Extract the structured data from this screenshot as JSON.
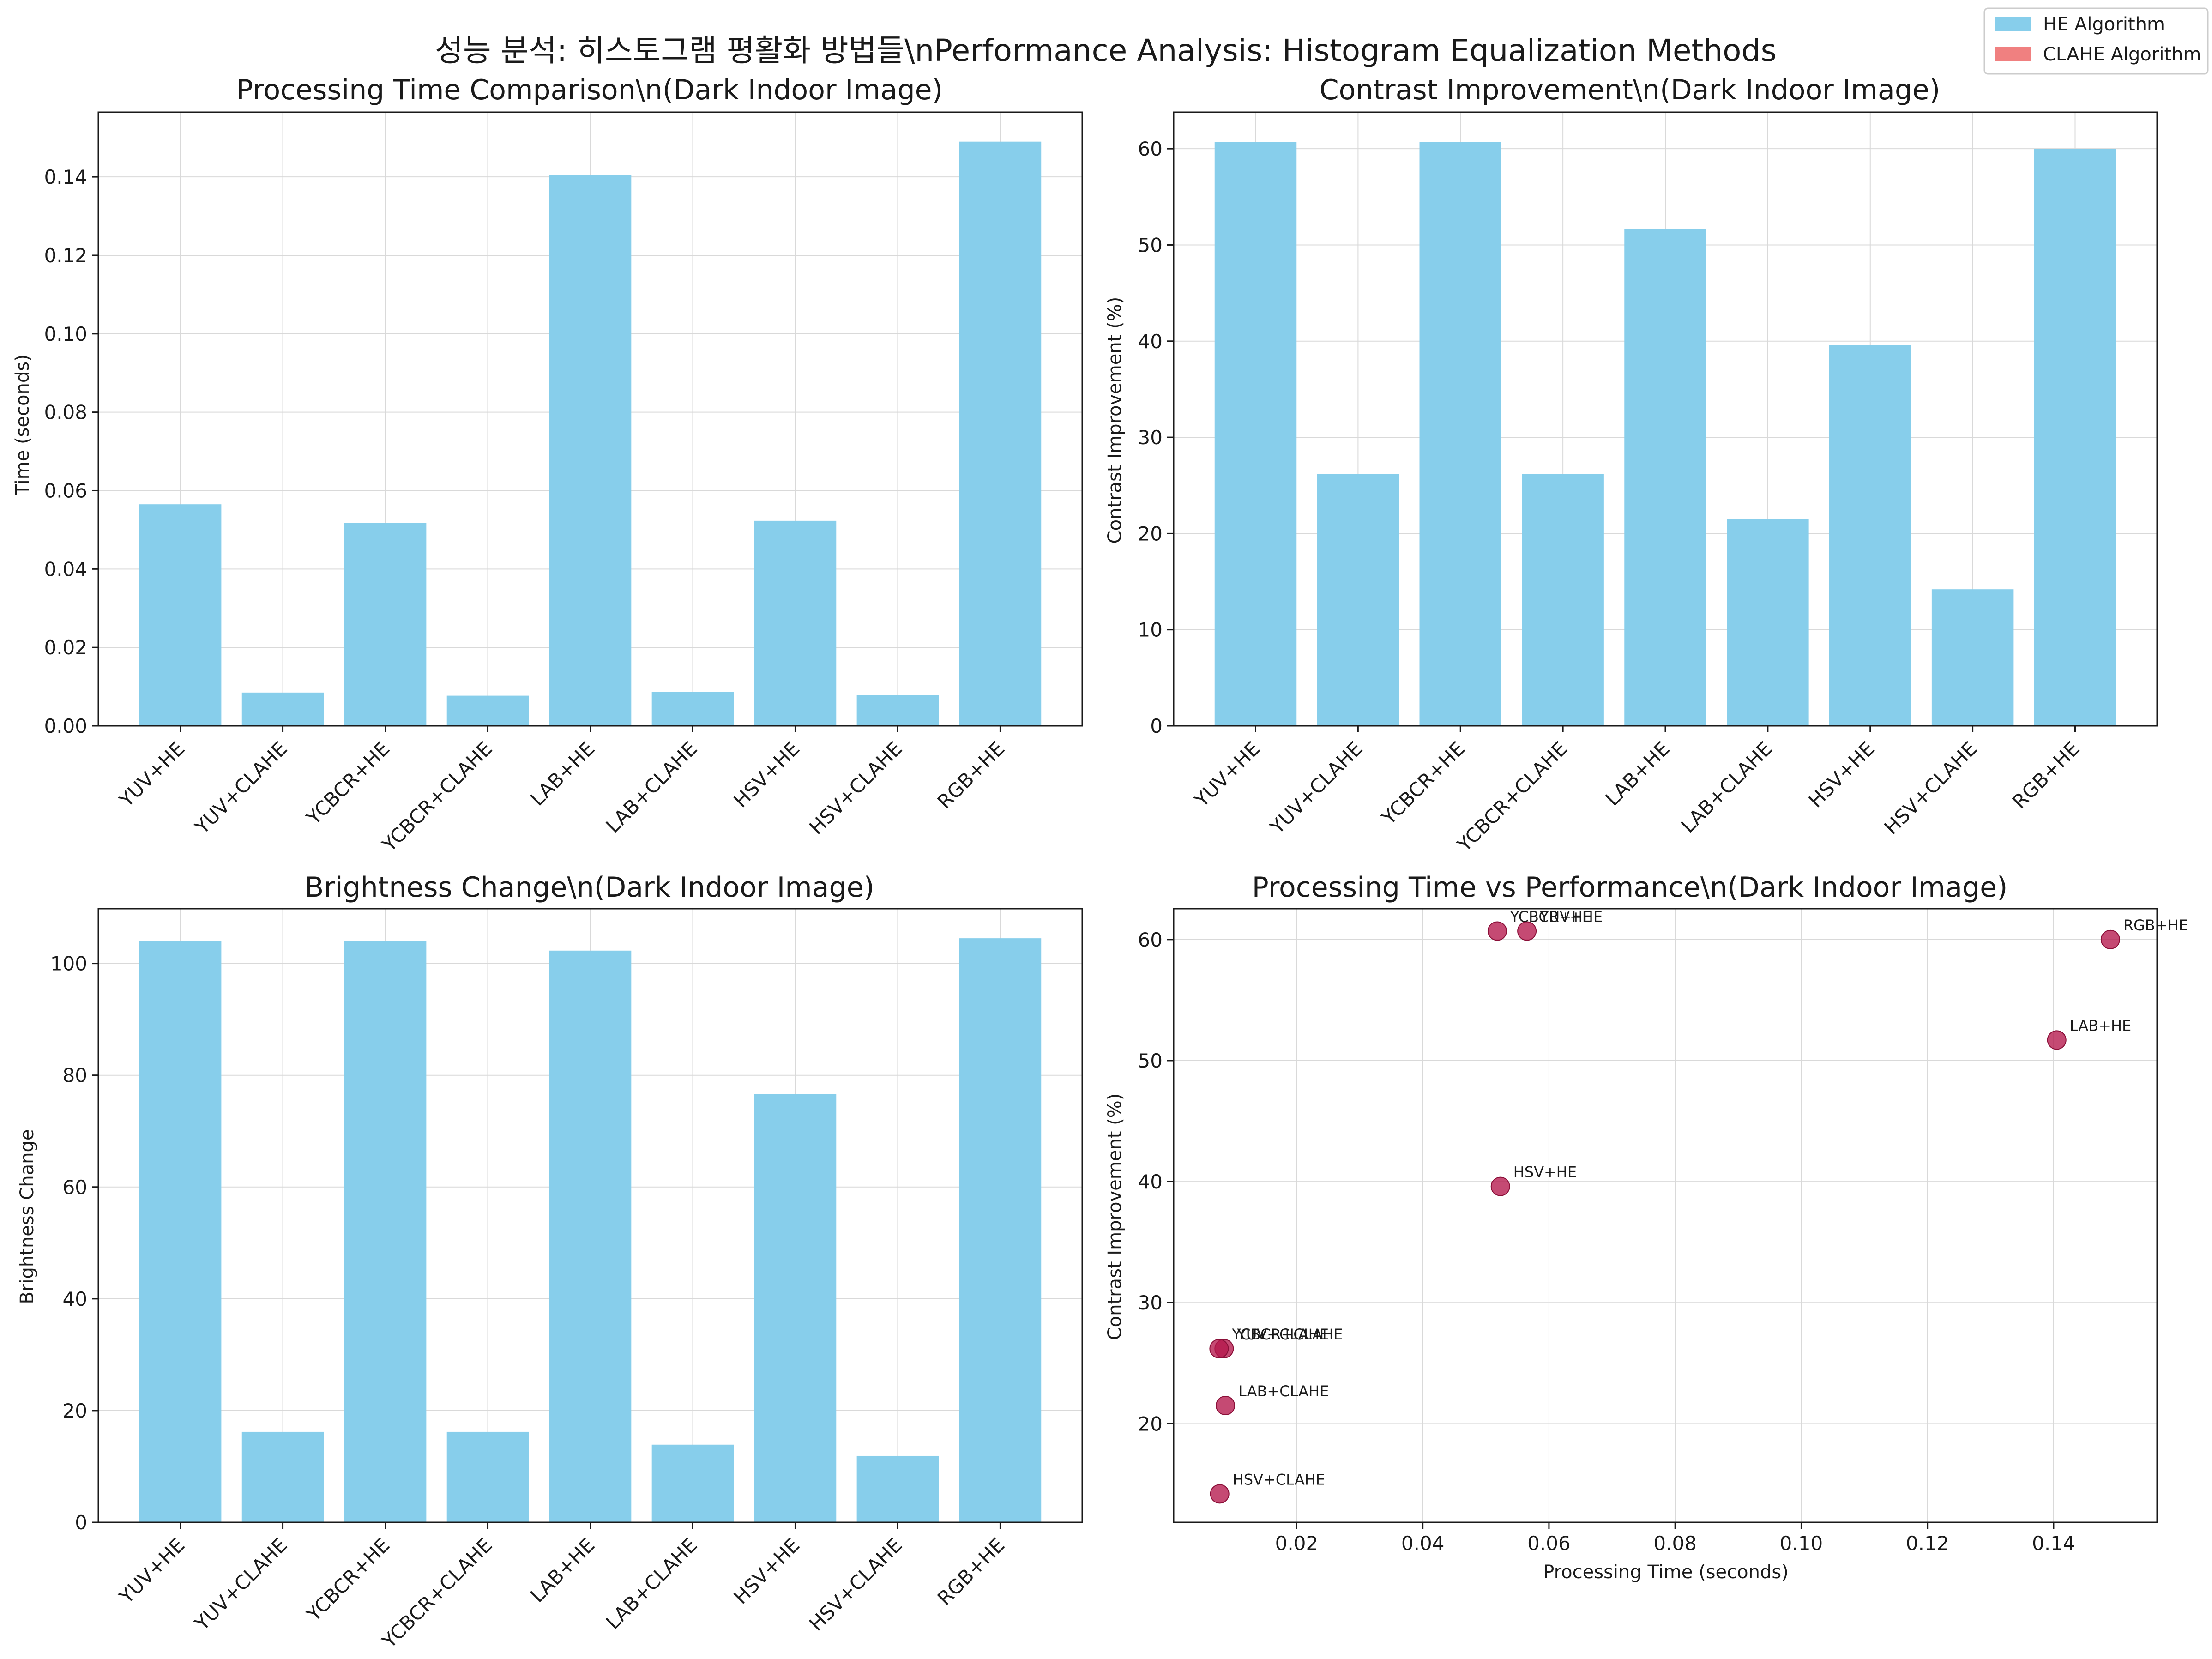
{
  "figure": {
    "suptitle": "성능 분석: 히스토그램 평활화 방법들\\nPerformance Analysis: Histogram Equalization Methods",
    "legend": [
      {
        "label": "HE Algorithm",
        "color": "#87ceeb"
      },
      {
        "label": "CLAHE Algorithm",
        "color": "#f08080"
      }
    ],
    "legend_placement": "top-right"
  },
  "chart_data": [
    {
      "type": "bar",
      "title": "Processing Time Comparison\\n(Dark Indoor Image)",
      "xlabel": "",
      "ylabel": "Time (seconds)",
      "categories": [
        "YUV+HE",
        "YUV+CLAHE",
        "YCBCR+HE",
        "YCBCR+CLAHE",
        "LAB+HE",
        "LAB+CLAHE",
        "HSV+HE",
        "HSV+CLAHE",
        "RGB+HE"
      ],
      "values": [
        0.0565,
        0.0085,
        0.0518,
        0.0077,
        0.1405,
        0.0087,
        0.0523,
        0.0078,
        0.149
      ],
      "ylim": [
        0,
        0.1565
      ],
      "yticks": [
        "0.00",
        "0.02",
        "0.04",
        "0.06",
        "0.08",
        "0.10",
        "0.12",
        "0.14"
      ],
      "ytick_values": [
        0,
        0.02,
        0.04,
        0.06,
        0.08,
        0.1,
        0.12,
        0.14
      ],
      "bar_color": "#87ceeb",
      "grid": true,
      "zero_line": false
    },
    {
      "type": "bar",
      "title": "Contrast Improvement\\n(Dark Indoor Image)",
      "xlabel": "",
      "ylabel": "Contrast Improvement (%)",
      "categories": [
        "YUV+HE",
        "YUV+CLAHE",
        "YCBCR+HE",
        "YCBCR+CLAHE",
        "LAB+HE",
        "LAB+CLAHE",
        "HSV+HE",
        "HSV+CLAHE",
        "RGB+HE"
      ],
      "values": [
        60.7,
        26.2,
        60.7,
        26.2,
        51.7,
        21.5,
        39.6,
        14.2,
        60.0
      ],
      "ylim": [
        0,
        63.8
      ],
      "yticks": [
        "0",
        "10",
        "20",
        "30",
        "40",
        "50",
        "60"
      ],
      "ytick_values": [
        0,
        10,
        20,
        30,
        40,
        50,
        60
      ],
      "bar_color": "#87ceeb",
      "grid": true,
      "zero_line": true
    },
    {
      "type": "bar",
      "title": "Brightness Change\\n(Dark Indoor Image)",
      "xlabel": "",
      "ylabel": "Brightness Change",
      "categories": [
        "YUV+HE",
        "YUV+CLAHE",
        "YCBCR+HE",
        "YCBCR+CLAHE",
        "LAB+HE",
        "LAB+CLAHE",
        "HSV+HE",
        "HSV+CLAHE",
        "RGB+HE"
      ],
      "values": [
        104.0,
        16.2,
        104.0,
        16.2,
        102.3,
        13.9,
        76.6,
        11.9,
        104.5
      ],
      "ylim": [
        0,
        109.8
      ],
      "yticks": [
        "0",
        "20",
        "40",
        "60",
        "80",
        "100"
      ],
      "ytick_values": [
        0,
        20,
        40,
        60,
        80,
        100
      ],
      "bar_color": "#87ceeb",
      "grid": true,
      "zero_line": true
    },
    {
      "type": "scatter",
      "title": "Processing Time vs Performance\\n(Dark Indoor Image)",
      "xlabel": "Processing Time (seconds)",
      "ylabel": "Contrast Improvement (%)",
      "xlim": [
        0.0005,
        0.1564
      ],
      "ylim": [
        11.85,
        62.55
      ],
      "xticks": [
        "0.02",
        "0.04",
        "0.06",
        "0.08",
        "0.10",
        "0.12",
        "0.14"
      ],
      "xtick_values": [
        0.02,
        0.04,
        0.06,
        0.08,
        0.1,
        0.12,
        0.14
      ],
      "yticks": [
        "20",
        "30",
        "40",
        "50",
        "60"
      ],
      "ytick_values": [
        20,
        30,
        40,
        50,
        60
      ],
      "point_color": "#b5174b",
      "grid": true,
      "points": [
        {
          "label": "YUV+HE",
          "x": 0.0565,
          "y": 60.7
        },
        {
          "label": "YUV+CLAHE",
          "x": 0.0085,
          "y": 26.2
        },
        {
          "label": "YCBCR+HE",
          "x": 0.0518,
          "y": 60.7
        },
        {
          "label": "YCBCR+CLAHE",
          "x": 0.0077,
          "y": 26.2
        },
        {
          "label": "LAB+HE",
          "x": 0.1405,
          "y": 51.7
        },
        {
          "label": "LAB+CLAHE",
          "x": 0.0087,
          "y": 21.5
        },
        {
          "label": "HSV+HE",
          "x": 0.0523,
          "y": 39.6
        },
        {
          "label": "HSV+CLAHE",
          "x": 0.0078,
          "y": 14.2
        },
        {
          "label": "RGB+HE",
          "x": 0.149,
          "y": 60.0
        }
      ]
    }
  ]
}
